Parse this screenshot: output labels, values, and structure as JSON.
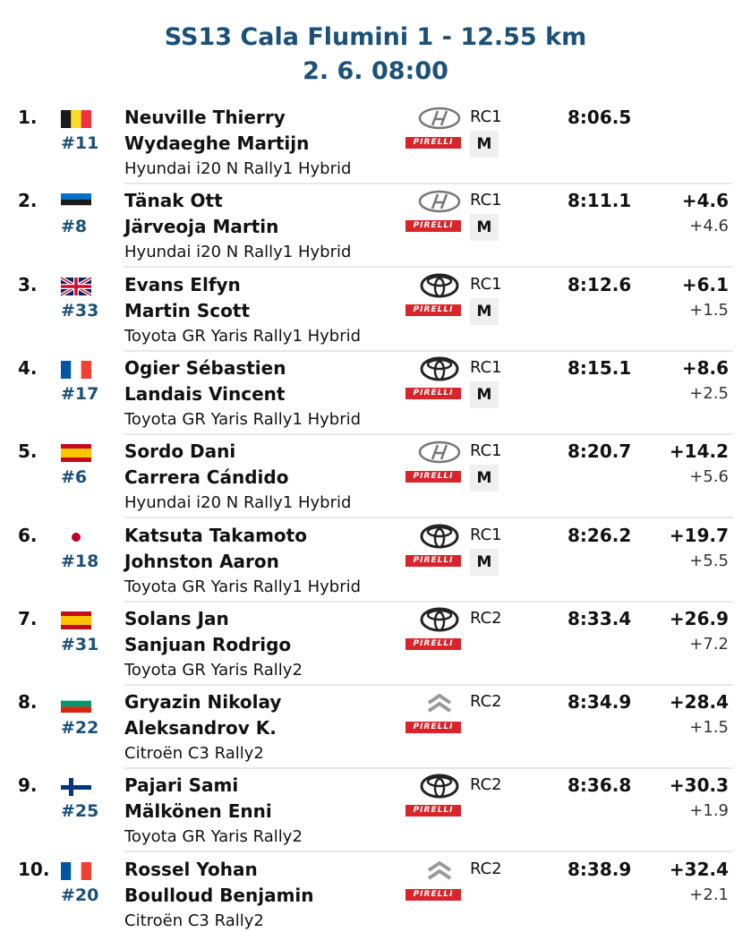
{
  "header": {
    "title": "SS13 Cala Flumini 1 - 12.55 km",
    "subtitle": "2. 6. 08:00"
  },
  "rows": [
    {
      "pos": "1.",
      "number": "#11",
      "driver": "Neuville Thierry",
      "codriver": "Wydaeghe Martijn",
      "car": "Hyundai i20 N Rally1 Hybrid",
      "class": "RC1",
      "tyre": "PIRELLI",
      "compound": "M",
      "time": "8:06.5",
      "logo": "hyundai",
      "flag": {
        "dir": "v",
        "colors": [
          "#1a1a1a",
          "#fdda24",
          "#ef3340"
        ]
      }
    },
    {
      "pos": "2.",
      "number": "#8",
      "driver": "Tänak Ott",
      "codriver": "Järveoja Martin",
      "car": "Hyundai i20 N Rally1 Hybrid",
      "class": "RC1",
      "tyre": "PIRELLI",
      "compound": "M",
      "time": "8:11.1",
      "gap": "+4.6",
      "diff": "+4.6",
      "logo": "hyundai",
      "flag": {
        "dir": "h",
        "colors": [
          "#0072ce",
          "#1a1a1a",
          "#ffffff"
        ]
      }
    },
    {
      "pos": "3.",
      "number": "#33",
      "driver": "Evans Elfyn",
      "codriver": "Martin Scott",
      "car": "Toyota GR Yaris Rally1 Hybrid",
      "class": "RC1",
      "tyre": "PIRELLI",
      "compound": "M",
      "time": "8:12.6",
      "gap": "+6.1",
      "diff": "+1.5",
      "logo": "toyota",
      "flag": {
        "dir": "union",
        "colors": [
          "#012169",
          "#ffffff",
          "#c8102e"
        ]
      }
    },
    {
      "pos": "4.",
      "number": "#17",
      "driver": "Ogier Sébastien",
      "codriver": "Landais Vincent",
      "car": "Toyota GR Yaris Rally1 Hybrid",
      "class": "RC1",
      "tyre": "PIRELLI",
      "compound": "M",
      "time": "8:15.1",
      "gap": "+8.6",
      "diff": "+2.5",
      "logo": "toyota",
      "flag": {
        "dir": "v",
        "colors": [
          "#0055a4",
          "#ffffff",
          "#ef4135"
        ]
      }
    },
    {
      "pos": "5.",
      "number": "#6",
      "driver": "Sordo Dani",
      "codriver": "Carrera Cándido",
      "car": "Hyundai i20 N Rally1 Hybrid",
      "class": "RC1",
      "tyre": "PIRELLI",
      "compound": "M",
      "time": "8:20.7",
      "gap": "+14.2",
      "diff": "+5.6",
      "logo": "hyundai",
      "flag": {
        "dir": "h",
        "colors": [
          "#c60b1e",
          "#ffc400",
          "#ffc400",
          "#c60b1e"
        ]
      }
    },
    {
      "pos": "6.",
      "number": "#18",
      "driver": "Katsuta Takamoto",
      "codriver": "Johnston Aaron",
      "car": "Toyota GR Yaris Rally1 Hybrid",
      "class": "RC1",
      "tyre": "PIRELLI",
      "compound": "M",
      "time": "8:26.2",
      "gap": "+19.7",
      "diff": "+5.5",
      "logo": "toyota",
      "flag": {
        "dir": "disc",
        "colors": [
          "#ffffff",
          "#bc002d"
        ]
      }
    },
    {
      "pos": "7.",
      "number": "#31",
      "driver": "Solans Jan",
      "codriver": "Sanjuan Rodrigo",
      "car": "Toyota GR Yaris Rally2",
      "class": "RC2",
      "tyre": "PIRELLI",
      "time": "8:33.4",
      "gap": "+26.9",
      "diff": "+7.2",
      "logo": "toyota",
      "flag": {
        "dir": "h",
        "colors": [
          "#c60b1e",
          "#ffc400",
          "#ffc400",
          "#c60b1e"
        ]
      }
    },
    {
      "pos": "8.",
      "number": "#22",
      "driver": "Gryazin Nikolay",
      "codriver": "Aleksandrov K.",
      "car": "Citroën C3 Rally2",
      "class": "RC2",
      "tyre": "PIRELLI",
      "time": "8:34.9",
      "gap": "+28.4",
      "diff": "+1.5",
      "logo": "citroen",
      "flag": {
        "dir": "h",
        "colors": [
          "#ffffff",
          "#00966e",
          "#d62612"
        ]
      }
    },
    {
      "pos": "9.",
      "number": "#25",
      "driver": "Pajari Sami",
      "codriver": "Mälkönen Enni",
      "car": "Toyota GR Yaris Rally2",
      "class": "RC2",
      "tyre": "PIRELLI",
      "time": "8:36.8",
      "gap": "+30.3",
      "diff": "+1.9",
      "logo": "toyota",
      "flag": {
        "dir": "cross",
        "colors": [
          "#ffffff",
          "#003580"
        ]
      }
    },
    {
      "pos": "10.",
      "number": "#20",
      "driver": "Rossel Yohan",
      "codriver": "Boulloud Benjamin",
      "car": "Citroën C3 Rally2",
      "class": "RC2",
      "tyre": "PIRELLI",
      "time": "8:38.9",
      "gap": "+32.4",
      "diff": "+2.1",
      "logo": "citroen",
      "flag": {
        "dir": "v",
        "colors": [
          "#0055a4",
          "#ffffff",
          "#ef4135"
        ]
      }
    }
  ]
}
